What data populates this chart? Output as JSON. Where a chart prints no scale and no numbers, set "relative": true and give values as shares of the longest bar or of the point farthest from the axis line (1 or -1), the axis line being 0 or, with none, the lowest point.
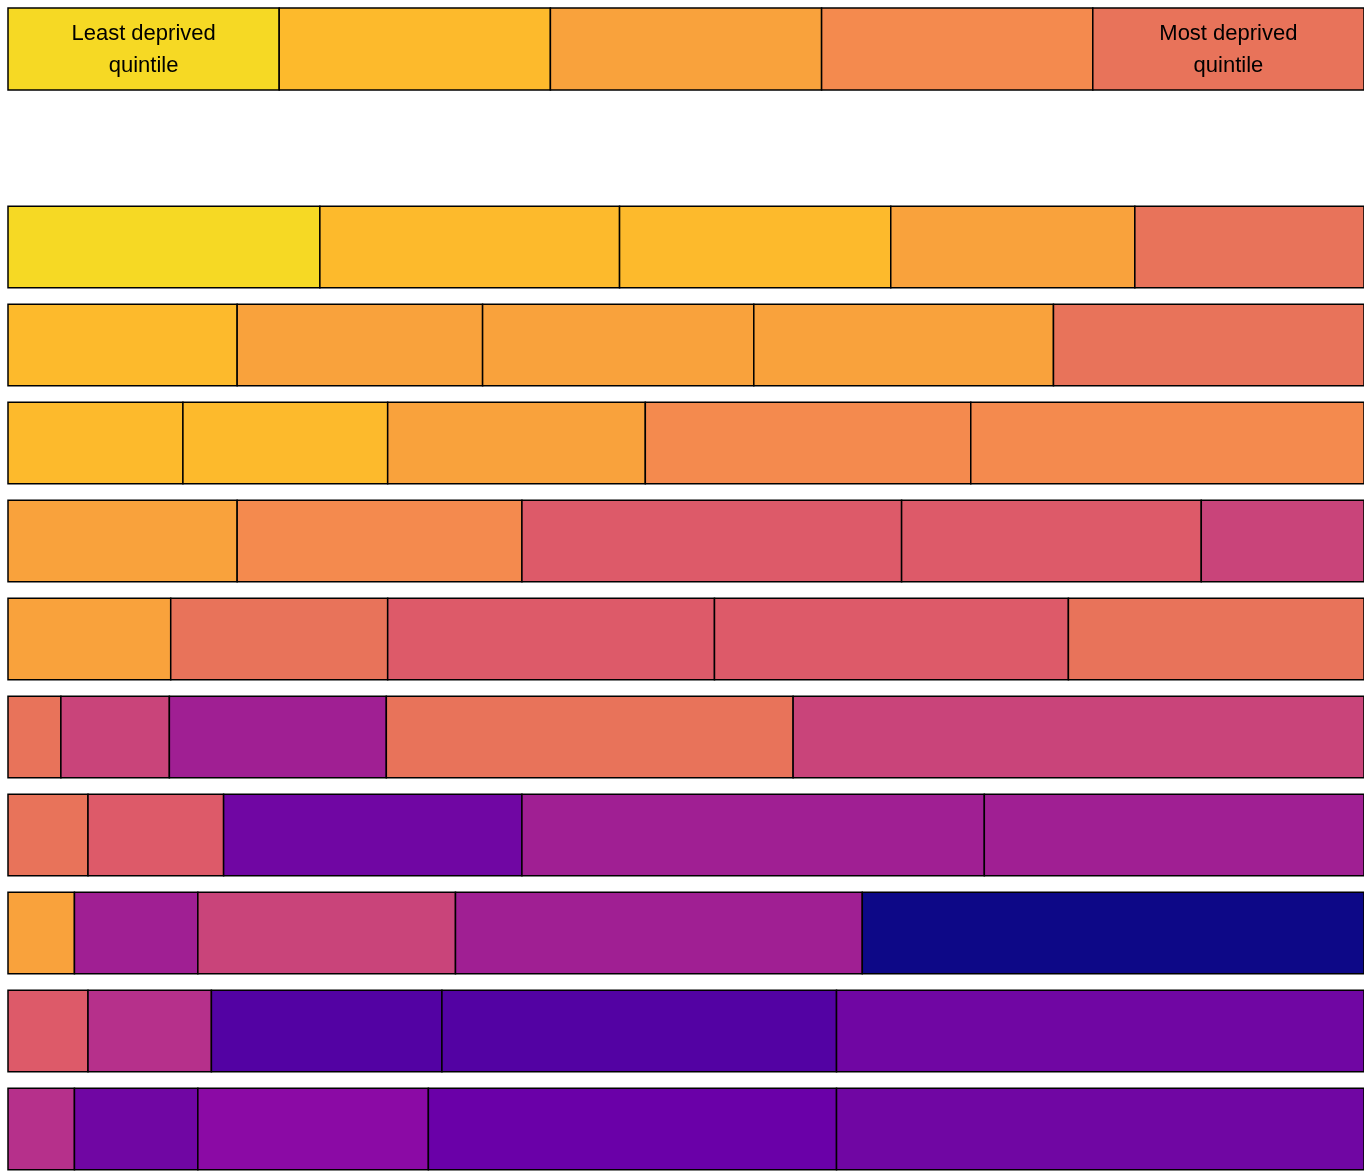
{
  "chart_data": [
    {
      "type": "bar",
      "orientation": "horizontal",
      "stacked": true,
      "relative": true,
      "tick_labels": false,
      "categories": [
        null
      ],
      "annotations": [
        "Least deprived quintile",
        "Most deprived quintile"
      ],
      "series": [
        {
          "values": [
            0.2
          ],
          "colors": [
            "#f6d924"
          ]
        },
        {
          "values": [
            0.2
          ],
          "colors": [
            "#fdba2c"
          ]
        },
        {
          "values": [
            0.2
          ],
          "colors": [
            "#f9a23c"
          ]
        },
        {
          "values": [
            0.2
          ],
          "colors": [
            "#f48a4e"
          ]
        },
        {
          "values": [
            0.2
          ],
          "colors": [
            "#e8735a"
          ]
        }
      ]
    },
    {
      "type": "bar",
      "orientation": "horizontal",
      "stacked": true,
      "relative": true,
      "tick_labels": false,
      "categories": [
        null,
        null,
        null,
        null,
        null,
        null,
        null,
        null,
        null,
        null
      ],
      "series": [
        {
          "values": [
            0.23,
            0.169,
            0.129,
            0.169,
            0.12,
            0.039,
            0.059,
            0.049,
            0.059,
            0.049
          ],
          "colors": [
            "#f6d924",
            "#fdba2c",
            "#fdba2c",
            "#f9a23c",
            "#f9a23c",
            "#e8735a",
            "#e8735a",
            "#f9a23c",
            "#dd5a69",
            "#b6308b"
          ]
        },
        {
          "values": [
            0.221,
            0.181,
            0.151,
            0.21,
            0.16,
            0.08,
            0.1,
            0.091,
            0.091,
            0.091
          ],
          "colors": [
            "#fdba2c",
            "#f9a23c",
            "#fdba2c",
            "#f48a4e",
            "#e8735a",
            "#c9447a",
            "#dd5a69",
            "#a01f93",
            "#b6308b",
            "#7006a3"
          ]
        },
        {
          "values": [
            0.2,
            0.2,
            0.19,
            0.28,
            0.241,
            0.16,
            0.22,
            0.19,
            0.17,
            0.17
          ],
          "colors": [
            "#fdba2c",
            "#f9a23c",
            "#f9a23c",
            "#dd5a69",
            "#dd5a69",
            "#a01f93",
            "#7006a3",
            "#c9447a",
            "#5302a3",
            "#8b0aa5"
          ]
        },
        {
          "values": [
            0.18,
            0.221,
            0.24,
            0.221,
            0.261,
            0.3,
            0.341,
            0.3,
            0.291,
            0.301
          ],
          "colors": [
            "#f9a23c",
            "#f9a23c",
            "#f48a4e",
            "#dd5a69",
            "#dd5a69",
            "#e8735a",
            "#a01f93",
            "#a01f93",
            "#5302a3",
            "#6a00a8"
          ]
        },
        {
          "values": [
            0.169,
            0.229,
            0.29,
            0.12,
            0.218,
            0.421,
            0.28,
            0.37,
            0.389,
            0.389
          ],
          "colors": [
            "#e8735a",
            "#e8735a",
            "#f48a4e",
            "#c9447a",
            "#e8735a",
            "#c9447a",
            "#a01f93",
            "#0d0887",
            "#7006a3",
            "#7006a3"
          ]
        }
      ]
    }
  ]
}
